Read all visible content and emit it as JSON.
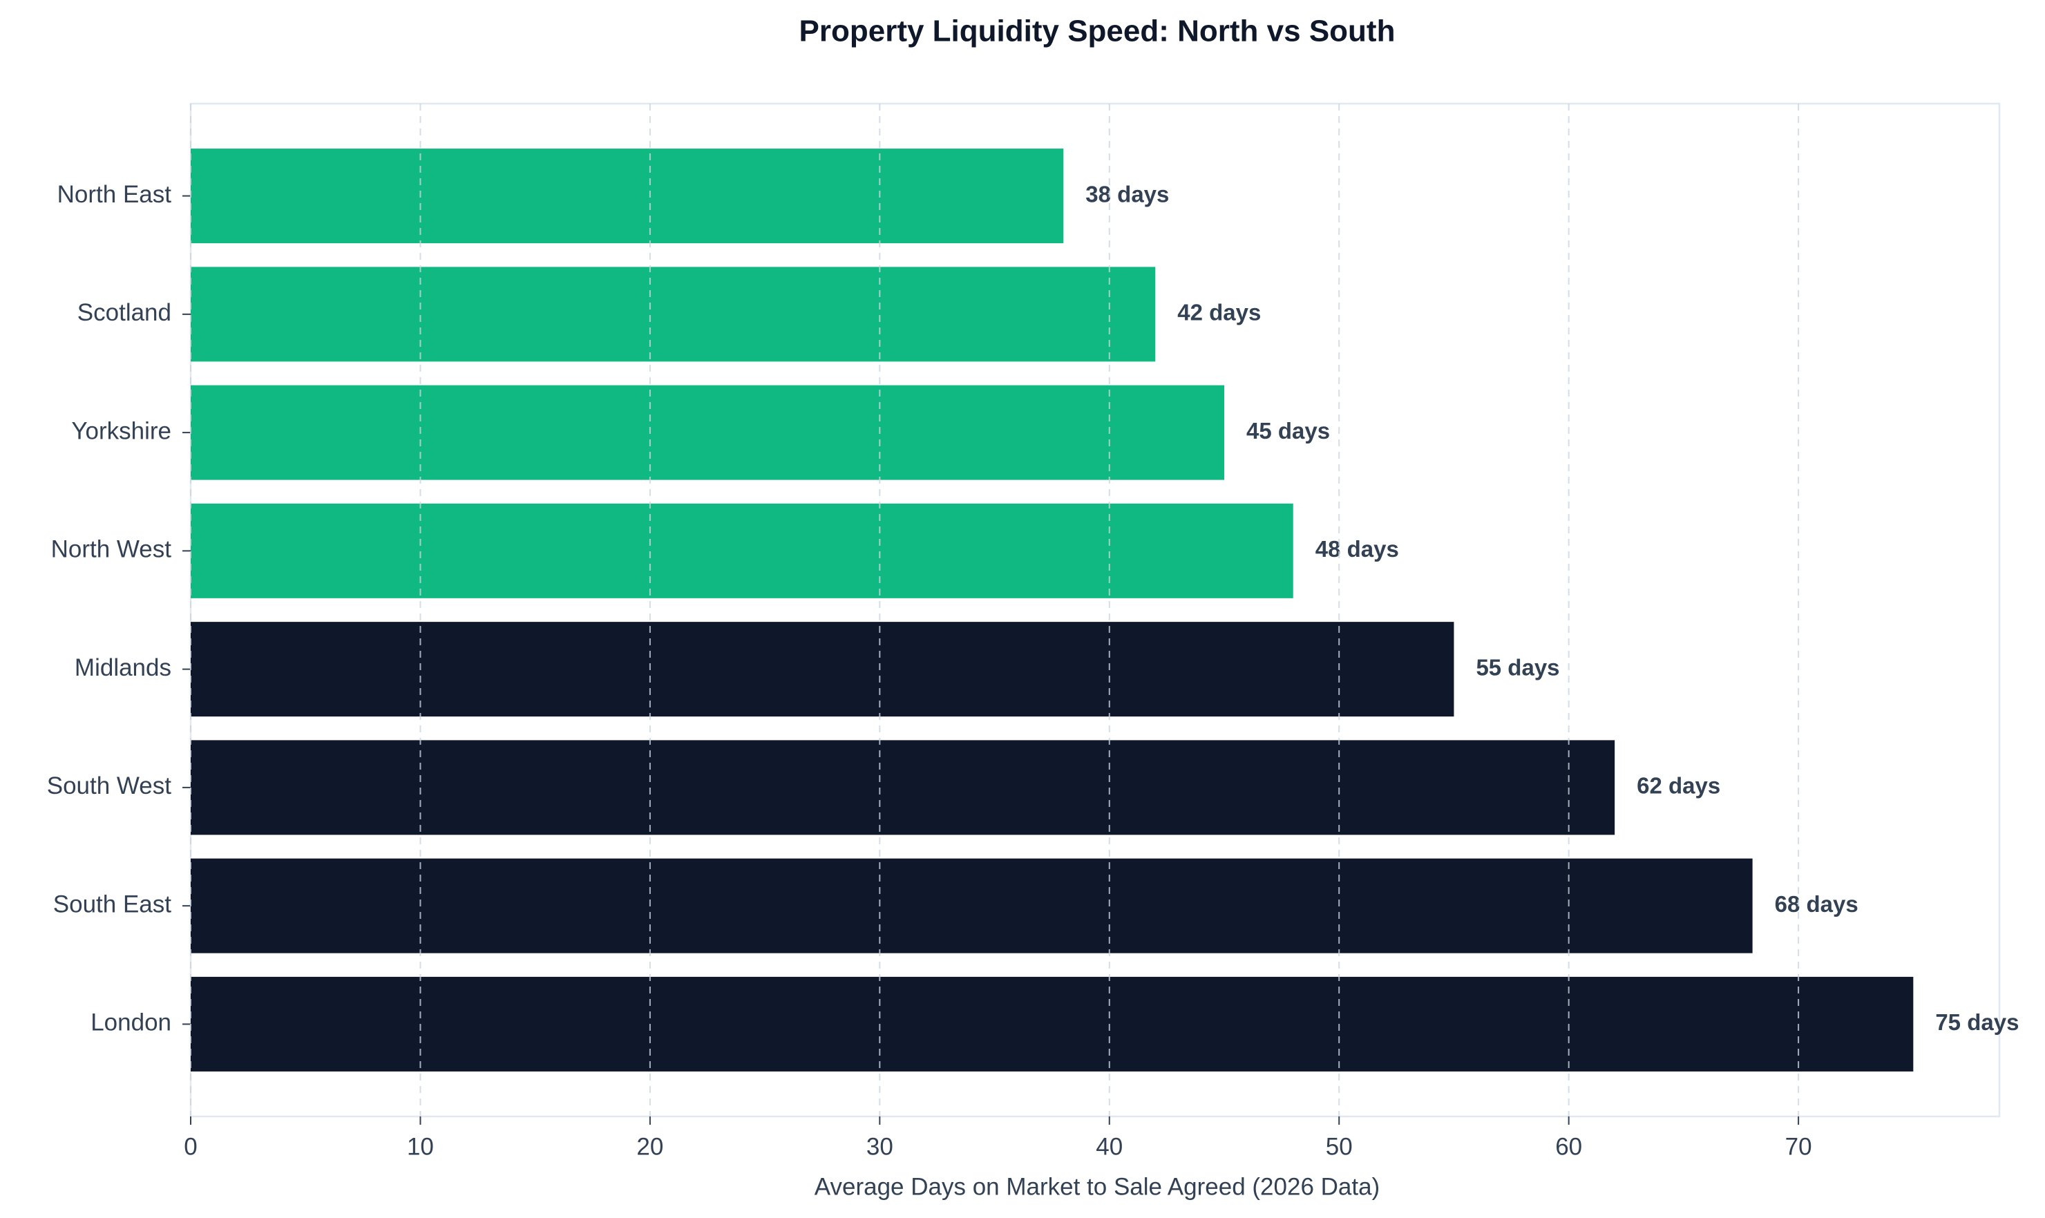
{
  "chart_data": {
    "type": "hbar",
    "title": "Property Liquidity Speed: North vs South",
    "x_label": "Average Days on Market to Sale Agreed (2026 Data)",
    "categories": [
      "North East",
      "Scotland",
      "Yorkshire",
      "North West",
      "Midlands",
      "South West",
      "South East",
      "London"
    ],
    "values": [
      38,
      42,
      45,
      48,
      55,
      62,
      68,
      75
    ],
    "value_labels": [
      "38 days",
      "42 days",
      "45 days",
      "48 days",
      "55 days",
      "62 days",
      "68 days",
      "75 days"
    ],
    "colors": [
      "#10b981",
      "#10b981",
      "#10b981",
      "#10b981",
      "#0f172a",
      "#0f172a",
      "#0f172a",
      "#0f172a"
    ],
    "xlim": [
      0,
      78.75
    ],
    "xticks": [
      0,
      10,
      20,
      30,
      40,
      50,
      60,
      70
    ],
    "grid": true
  }
}
